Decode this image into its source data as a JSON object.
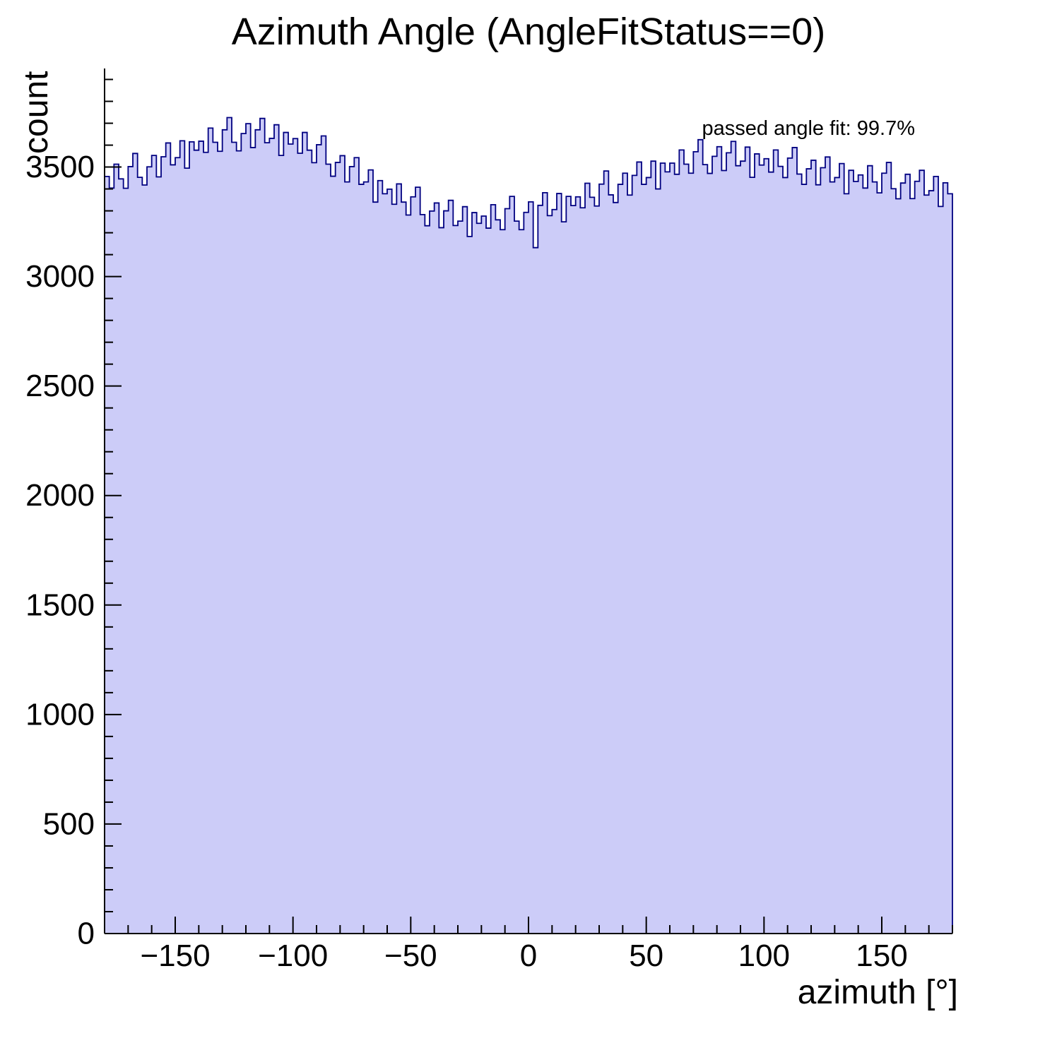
{
  "title": "Azimuth Angle (AngleFitStatus==0)",
  "annotation": "passed angle fit: 99.7%",
  "colors": {
    "hist_fill": "#ccccf8",
    "hist_line": "#000080",
    "axis": "#000000",
    "text": "#000000"
  },
  "chart_data": {
    "type": "bar",
    "subtype": "histogram",
    "title": "Azimuth Angle (AngleFitStatus==0)",
    "xlabel": "azimuth [°]",
    "ylabel": "count",
    "xlim": [
      -180,
      180
    ],
    "ylim": [
      0,
      3950
    ],
    "grid": false,
    "legend_position": "none",
    "annotation": "passed angle fit: 99.7%",
    "x_major_ticks": [
      -150,
      -100,
      -50,
      0,
      50,
      100,
      150
    ],
    "x_tick_labels": [
      "−150",
      "−100",
      "−50",
      "0",
      "50",
      "100",
      "150"
    ],
    "x_minor_step": 10,
    "y_major_ticks": [
      0,
      500,
      1000,
      1500,
      2000,
      2500,
      3000,
      3500
    ],
    "y_tick_labels": [
      "0",
      "500",
      "1000",
      "1500",
      "2000",
      "2500",
      "3000",
      "3500"
    ],
    "y_minor_step": 100,
    "bin_start": -180,
    "bin_width": 2,
    "values": [
      3457,
      3404,
      3513,
      3446,
      3403,
      3502,
      3562,
      3453,
      3418,
      3501,
      3553,
      3455,
      3547,
      3610,
      3510,
      3543,
      3620,
      3495,
      3615,
      3577,
      3618,
      3567,
      3678,
      3613,
      3572,
      3670,
      3726,
      3613,
      3574,
      3653,
      3698,
      3589,
      3670,
      3722,
      3611,
      3631,
      3693,
      3553,
      3658,
      3605,
      3630,
      3563,
      3658,
      3577,
      3520,
      3602,
      3642,
      3513,
      3458,
      3521,
      3552,
      3432,
      3502,
      3543,
      3421,
      3432,
      3487,
      3340,
      3438,
      3378,
      3399,
      3330,
      3423,
      3340,
      3281,
      3364,
      3408,
      3283,
      3232,
      3299,
      3336,
      3223,
      3300,
      3348,
      3233,
      3253,
      3319,
      3183,
      3292,
      3243,
      3276,
      3221,
      3328,
      3259,
      3214,
      3310,
      3366,
      3253,
      3214,
      3293,
      3341,
      3132,
      3325,
      3383,
      3278,
      3306,
      3379,
      3250,
      3366,
      3324,
      3364,
      3314,
      3426,
      3362,
      3322,
      3422,
      3482,
      3373,
      3338,
      3421,
      3472,
      3372,
      3462,
      3523,
      3421,
      3452,
      3527,
      3400,
      3518,
      3478,
      3518,
      3467,
      3578,
      3513,
      3472,
      3570,
      3625,
      3511,
      3471,
      3549,
      3593,
      3484,
      3565,
      3617,
      3506,
      3527,
      3591,
      3453,
      3560,
      3509,
      3538,
      3477,
      3578,
      3503,
      3452,
      3541,
      3589,
      3468,
      3421,
      3492,
      3531,
      3419,
      3497,
      3546,
      3432,
      3452,
      3516,
      3378,
      3485,
      3434,
      3464,
      3404,
      3506,
      3432,
      3382,
      3472,
      3521,
      3401,
      3355,
      3427,
      3467,
      3356,
      3435,
      3485,
      3372,
      3392,
      3457,
      3320,
      3428,
      3378
    ]
  }
}
